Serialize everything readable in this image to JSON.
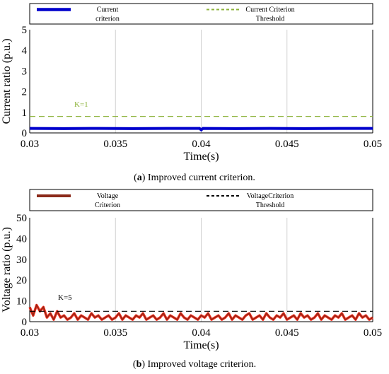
{
  "chart_data": [
    {
      "panel": "a",
      "type": "line",
      "xlabel": "Time(s)",
      "ylabel": "Current ratio (p.u.)",
      "xlim": [
        0.03,
        0.05
      ],
      "ylim": [
        0,
        5
      ],
      "xticks": [
        "0.03",
        "0.035",
        "0.04",
        "0.045",
        "0.05"
      ],
      "yticks": [
        "0",
        "1",
        "2",
        "3",
        "4",
        "5"
      ],
      "grid": true,
      "legend_position": "top",
      "annotation": "K=1",
      "series": [
        {
          "name": "Current criterion",
          "color": "#0000cc",
          "style": "solid",
          "x": [
            0.03,
            0.032,
            0.034,
            0.036,
            0.038,
            0.0399,
            0.04,
            0.0401,
            0.042,
            0.044,
            0.046,
            0.048,
            0.05
          ],
          "y": [
            0.22,
            0.21,
            0.22,
            0.21,
            0.22,
            0.22,
            0.15,
            0.22,
            0.21,
            0.22,
            0.21,
            0.22,
            0.22
          ]
        },
        {
          "name": "Current Criterion Threshold",
          "color": "#8db33a",
          "style": "dashed",
          "x": [
            0.03,
            0.05
          ],
          "y": [
            0.8,
            0.8
          ]
        }
      ]
    },
    {
      "panel": "b",
      "type": "line",
      "xlabel": "Time(s)",
      "ylabel": "Voltage ratio (p.u.)",
      "xlim": [
        0.03,
        0.05
      ],
      "ylim": [
        0,
        50
      ],
      "xticks": [
        "0.03",
        "0.035",
        "0.04",
        "0.045",
        "0.05"
      ],
      "yticks": [
        "0",
        "10",
        "20",
        "30",
        "40",
        "50"
      ],
      "grid": true,
      "legend_position": "top",
      "annotation": "K=5",
      "series": [
        {
          "name": "Voltage Criterion",
          "color": "#8b2a1a",
          "style": "solid",
          "x": [
            0.03,
            0.0302,
            0.0304,
            0.0306,
            0.0308,
            0.031,
            0.0312,
            0.0314,
            0.0316,
            0.0318,
            0.032,
            0.0322,
            0.0324,
            0.0326,
            0.0328,
            0.033,
            0.0332,
            0.0334,
            0.0336,
            0.0338,
            0.034,
            0.0342,
            0.0344,
            0.0346,
            0.0348,
            0.035,
            0.0352,
            0.0354,
            0.0356,
            0.0358,
            0.036,
            0.0362,
            0.0364,
            0.0366,
            0.0368,
            0.037,
            0.0372,
            0.0374,
            0.0376,
            0.0378,
            0.038,
            0.0382,
            0.0384,
            0.0386,
            0.0388,
            0.039,
            0.0392,
            0.0394,
            0.0396,
            0.0398,
            0.04,
            0.0402,
            0.0404,
            0.0406,
            0.0408,
            0.041,
            0.0412,
            0.0414,
            0.0416,
            0.0418,
            0.042,
            0.0422,
            0.0424,
            0.0426,
            0.0428,
            0.043,
            0.0432,
            0.0434,
            0.0436,
            0.0438,
            0.044,
            0.0442,
            0.0444,
            0.0446,
            0.0448,
            0.045,
            0.0452,
            0.0454,
            0.0456,
            0.0458,
            0.046,
            0.0462,
            0.0464,
            0.0466,
            0.0468,
            0.047,
            0.0472,
            0.0474,
            0.0476,
            0.0478,
            0.048,
            0.0482,
            0.0484,
            0.0486,
            0.0488,
            0.049,
            0.0492,
            0.0494,
            0.0496,
            0.0498,
            0.05
          ],
          "y": [
            7,
            3,
            8,
            5,
            7,
            2,
            4,
            1,
            5,
            2,
            3,
            1,
            2,
            4,
            1,
            3,
            2,
            1,
            4,
            2,
            3,
            1,
            2,
            3,
            1,
            2,
            4,
            1,
            3,
            2,
            1,
            3,
            2,
            4,
            1,
            2,
            3,
            1,
            2,
            4,
            1,
            3,
            2,
            1,
            4,
            2,
            1,
            3,
            2,
            1,
            3,
            2,
            4,
            1,
            2,
            3,
            1,
            2,
            4,
            1,
            3,
            2,
            1,
            3,
            4,
            1,
            2,
            3,
            1,
            4,
            2,
            1,
            3,
            2,
            4,
            1,
            2,
            3,
            1,
            4,
            2,
            3,
            1,
            2,
            4,
            1,
            3,
            2,
            1,
            3,
            2,
            4,
            1,
            2,
            3,
            1,
            4,
            2,
            3,
            1,
            2
          ]
        },
        {
          "name": "VoltageCriterion Threshold",
          "color": "#000000",
          "style": "dashed",
          "x": [
            0.03,
            0.05
          ],
          "y": [
            5,
            5
          ]
        }
      ]
    }
  ],
  "captions": [
    {
      "label": "a",
      "text": " Improved current criterion."
    },
    {
      "label": "b",
      "text": " Improved voltage criterion."
    }
  ],
  "legend_a": {
    "line1": "Current",
    "line2": "criterion",
    "thr1": "Current Criterion",
    "thr2": "Threshold"
  },
  "legend_b": {
    "line1": "Voltage",
    "line2": "Criterion",
    "thr1": "VoltageCriterion",
    "thr2": "Threshold"
  }
}
